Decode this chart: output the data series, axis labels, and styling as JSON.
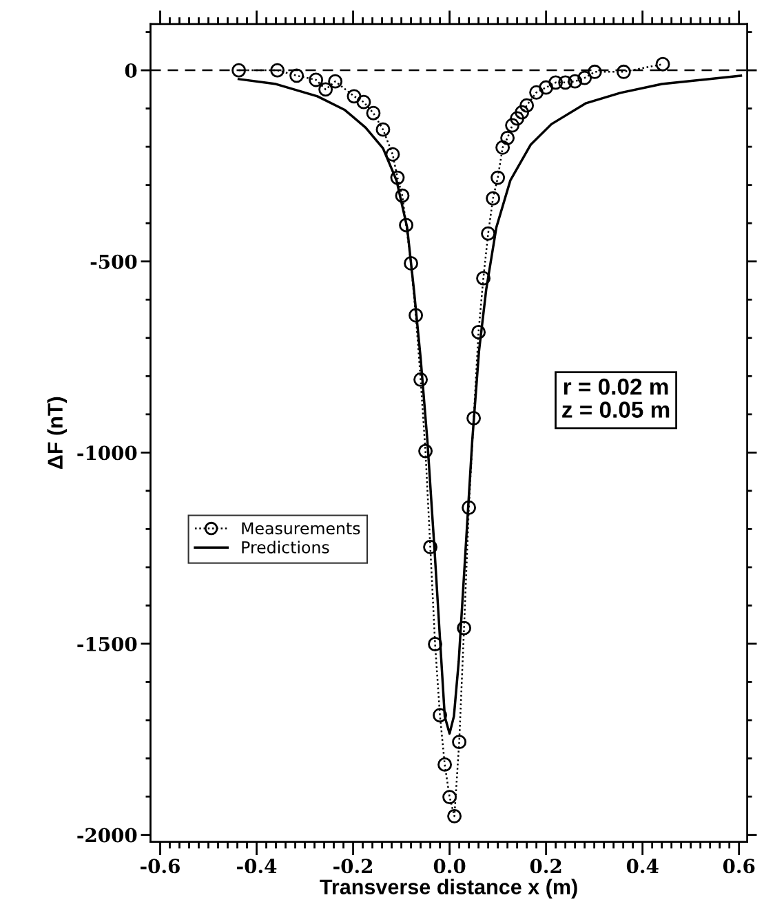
{
  "chart_data": {
    "type": "line",
    "xlabel": "Transverse distance x (m)",
    "ylabel": "ΔF (nT)",
    "xlim": [
      -0.62,
      0.617
    ],
    "ylim": [
      -2018,
      121
    ],
    "xticks": [
      -0.6,
      {
        "value": -0.58,
        "label": null
      },
      {
        "value": -0.56,
        "label": null
      },
      {
        "value": -0.54,
        "label": null
      },
      {
        "value": -0.52,
        "label": null
      },
      {
        "value": -0.5,
        "label": null
      },
      {
        "value": -0.48,
        "label": null
      },
      {
        "value": -0.46,
        "label": null
      },
      {
        "value": -0.44,
        "label": null
      },
      {
        "value": -0.42,
        "label": null
      },
      -0.4,
      {
        "value": -0.38,
        "label": null
      },
      {
        "value": -0.36,
        "label": null
      },
      {
        "value": -0.34,
        "label": null
      },
      {
        "value": -0.32,
        "label": null
      },
      {
        "value": -0.3,
        "label": null
      },
      {
        "value": -0.28,
        "label": null
      },
      {
        "value": -0.26,
        "label": null
      },
      {
        "value": -0.24,
        "label": null
      },
      {
        "value": -0.22,
        "label": null
      },
      -0.2,
      {
        "value": -0.18,
        "label": null
      },
      {
        "value": -0.16,
        "label": null
      },
      {
        "value": -0.14,
        "label": null
      },
      {
        "value": -0.12,
        "label": null
      },
      {
        "value": -0.1,
        "label": null
      },
      {
        "value": -0.08,
        "label": null
      },
      {
        "value": -0.06,
        "label": null
      },
      {
        "value": -0.04,
        "label": null
      },
      {
        "value": -0.02,
        "label": null
      },
      {
        "value": 0,
        "label": "0.0"
      },
      {
        "value": 0.02,
        "label": null
      },
      {
        "value": 0.04,
        "label": null
      },
      {
        "value": 0.06,
        "label": null
      },
      {
        "value": 0.08,
        "label": null
      },
      {
        "value": 0.1,
        "label": null
      },
      {
        "value": 0.12,
        "label": null
      },
      {
        "value": 0.14,
        "label": null
      },
      {
        "value": 0.16,
        "label": null
      },
      {
        "value": 0.18,
        "label": null
      },
      0.2,
      {
        "value": 0.22,
        "label": null
      },
      {
        "value": 0.24,
        "label": null
      },
      {
        "value": 0.26,
        "label": null
      },
      {
        "value": 0.28,
        "label": null
      },
      {
        "value": 0.3,
        "label": null
      },
      {
        "value": 0.32,
        "label": null
      },
      {
        "value": 0.34,
        "label": null
      },
      {
        "value": 0.36,
        "label": null
      },
      {
        "value": 0.38,
        "label": null
      },
      0.4,
      {
        "value": 0.42,
        "label": null
      },
      {
        "value": 0.44,
        "label": null
      },
      {
        "value": 0.46,
        "label": null
      },
      {
        "value": 0.48,
        "label": null
      },
      {
        "value": 0.5,
        "label": null
      },
      {
        "value": 0.52,
        "label": null
      },
      {
        "value": 0.54,
        "label": null
      },
      {
        "value": 0.56,
        "label": null
      },
      {
        "value": 0.58,
        "label": null
      },
      0.6
    ],
    "yticks": [
      -2000,
      {
        "value": -1900,
        "label": null
      },
      {
        "value": -1800,
        "label": null
      },
      {
        "value": -1700,
        "label": null
      },
      {
        "value": -1600,
        "label": null
      },
      -1500,
      {
        "value": -1400,
        "label": null
      },
      {
        "value": -1300,
        "label": null
      },
      {
        "value": -1200,
        "label": null
      },
      {
        "value": -1100,
        "label": null
      },
      -1000,
      {
        "value": -900,
        "label": null
      },
      {
        "value": -800,
        "label": null
      },
      {
        "value": -700,
        "label": null
      },
      {
        "value": -600,
        "label": null
      },
      -500,
      {
        "value": -400,
        "label": null
      },
      {
        "value": -300,
        "label": null
      },
      {
        "value": -200,
        "label": null
      },
      {
        "value": -100,
        "label": null
      },
      0,
      {
        "value": 100,
        "label": null
      }
    ],
    "grid": false,
    "legend": "left",
    "ref_lines": [
      {
        "axis": "y",
        "value": 0,
        "label": null,
        "line_style": "dashed",
        "color": "#000000"
      }
    ],
    "annotations": [
      "r = 0.02 m\nz = 0.05 m"
    ],
    "series": [
      {
        "name": "Measurements",
        "type": "line",
        "marker": "circle",
        "line_style": "dotted",
        "color": "#000000",
        "x": [
          -0.437,
          -0.357,
          -0.317,
          -0.277,
          -0.257,
          -0.237,
          -0.198,
          -0.178,
          -0.158,
          -0.138,
          -0.118,
          -0.108,
          -0.098,
          -0.09,
          -0.08,
          -0.07,
          -0.06,
          -0.05,
          -0.04,
          -0.03,
          -0.02,
          -0.01,
          0,
          0.01,
          0.02,
          0.03,
          0.04,
          0.05,
          0.06,
          0.07,
          0.08,
          0.09,
          0.1,
          0.11,
          0.12,
          0.13,
          0.14,
          0.15,
          0.16,
          0.18,
          0.2,
          0.22,
          0.24,
          0.26,
          0.28,
          0.301,
          0.361,
          0.442
        ],
        "values": [
          0,
          0,
          -14,
          -25,
          -50,
          -29,
          -68,
          -83,
          -112,
          -155,
          -220,
          -281,
          -328,
          -405,
          -505,
          -641,
          -809,
          -996,
          -1247,
          -1501,
          -1687,
          -1816,
          -1901,
          -1951,
          -1757,
          -1459,
          -1144,
          -910,
          -685,
          -544,
          -427,
          -335,
          -281,
          -202,
          -177,
          -144,
          -126,
          -110,
          -92,
          -58,
          -45,
          -32,
          -32,
          -29,
          -20,
          -4,
          -4,
          16
        ]
      },
      {
        "name": "Predictions",
        "type": "line",
        "marker": "none",
        "line_style": "solid",
        "color": "#000000",
        "x": [
          -0.437,
          -0.36,
          -0.274,
          -0.217,
          -0.174,
          -0.138,
          -0.11,
          -0.088,
          -0.074,
          -0.06,
          -0.046,
          -0.031,
          -0.017,
          -0.01,
          0,
          0.009,
          0.019,
          0.033,
          0.047,
          0.061,
          0.076,
          0.097,
          0.126,
          0.168,
          0.211,
          0.283,
          0.354,
          0.44,
          0.604
        ],
        "values": [
          -23,
          -36,
          -68,
          -104,
          -150,
          -204,
          -288,
          -411,
          -573,
          -753,
          -969,
          -1258,
          -1546,
          -1690,
          -1735,
          -1690,
          -1546,
          -1258,
          -969,
          -735,
          -573,
          -411,
          -288,
          -195,
          -141,
          -86,
          -59,
          -36,
          -14
        ]
      }
    ]
  }
}
